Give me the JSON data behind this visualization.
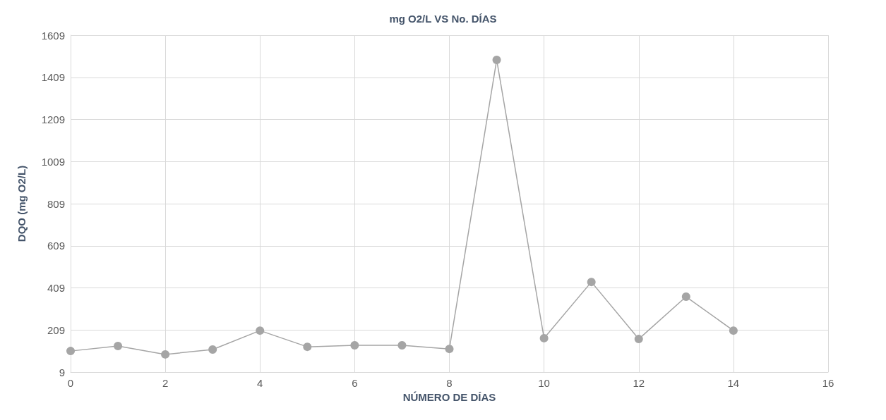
{
  "chart_data": {
    "type": "line",
    "title": "mg O2/L VS No. DÍAS",
    "xlabel": "NÚMERO DE DÍAS",
    "ylabel": "DQO (mg O2/L)",
    "x": [
      0,
      1,
      2,
      3,
      4,
      5,
      6,
      7,
      8,
      9,
      10,
      11,
      12,
      13,
      14
    ],
    "series": [
      {
        "color": "#a5a5a5",
        "values": [
          109,
          133,
          93,
          116,
          206,
          129,
          136,
          136,
          119,
          1492,
          170,
          437,
          166,
          367,
          206
        ]
      }
    ],
    "xlim": [
      0,
      16
    ],
    "xticks": [
      0,
      2,
      4,
      6,
      8,
      10,
      12,
      14,
      16
    ],
    "ylim": [
      9,
      1609
    ],
    "yticks": [
      9,
      209,
      409,
      609,
      809,
      1009,
      1209,
      1409,
      1609
    ],
    "grid": true,
    "marker": "circle",
    "line_style": "solid"
  }
}
